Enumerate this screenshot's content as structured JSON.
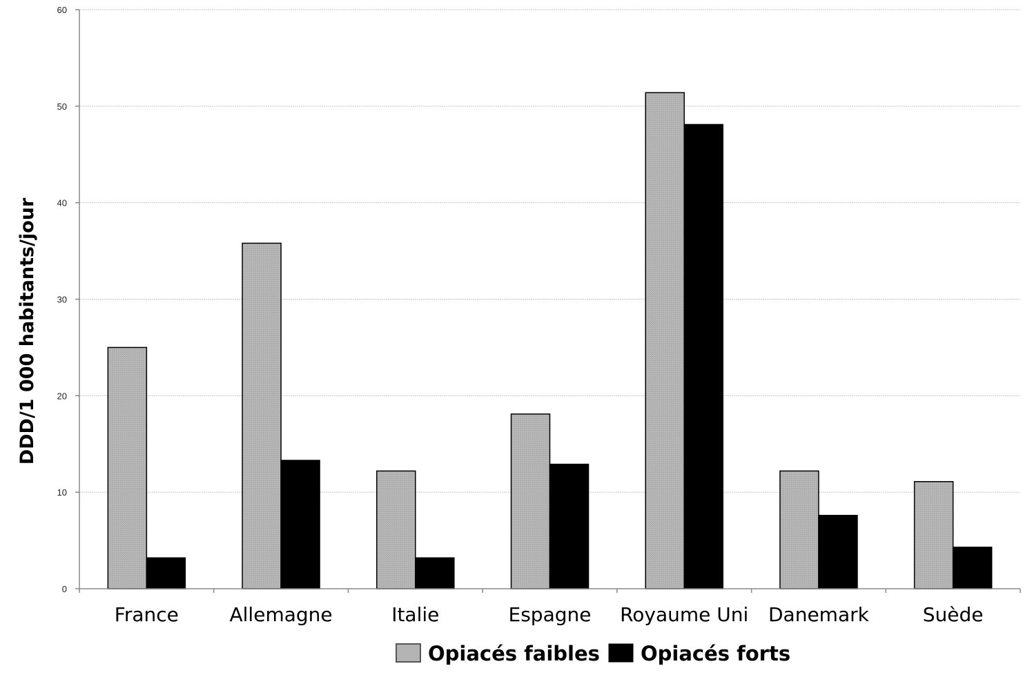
{
  "chart_data": {
    "type": "bar",
    "title": "",
    "xlabel": "",
    "ylabel": "DDD/1 000 habitants/jour",
    "ylim": [
      0,
      60
    ],
    "yticks": [
      0,
      10,
      20,
      30,
      40,
      50,
      60
    ],
    "grid": true,
    "legend_position": "bottom",
    "categories": [
      "France",
      "Allemagne",
      "Italie",
      "Espagne",
      "Royaume Uni",
      "Danemark",
      "Suède"
    ],
    "series": [
      {
        "name": "Opiacés faibles",
        "color": "#b4b4b4",
        "values": [
          25,
          35.8,
          12.2,
          18.1,
          51.4,
          12.2,
          11.1
        ]
      },
      {
        "name": "Opiacés forts",
        "color": "#000000",
        "values": [
          3.2,
          13.3,
          3.2,
          12.9,
          48.1,
          7.6,
          4.3
        ]
      }
    ]
  }
}
